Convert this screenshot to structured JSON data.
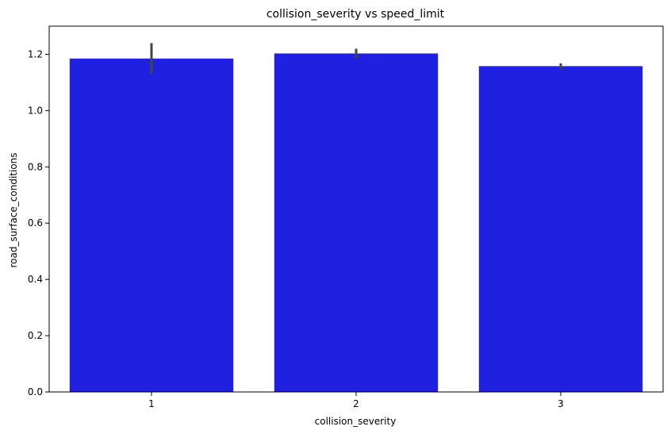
{
  "chart_data": {
    "type": "bar",
    "title": "collision_severity vs speed_limit",
    "xlabel": "collision_severity",
    "ylabel": "road_surface_conditions",
    "categories": [
      "1",
      "2",
      "3"
    ],
    "values": [
      1.185,
      1.203,
      1.158
    ],
    "error_bars": [
      [
        1.13,
        1.24
      ],
      [
        1.185,
        1.22
      ],
      [
        1.145,
        1.168
      ]
    ],
    "ylim": [
      0,
      1.3
    ],
    "yticks": [
      0.0,
      0.2,
      0.4,
      0.6,
      0.8,
      1.0,
      1.2
    ],
    "ytick_labels": [
      "0.0",
      "0.2",
      "0.4",
      "0.6",
      "0.8",
      "1.0",
      "1.2"
    ],
    "grid": false,
    "colors": {
      "bar": "#2020e0",
      "error_bar": "#444444",
      "axis": "#000000"
    }
  }
}
